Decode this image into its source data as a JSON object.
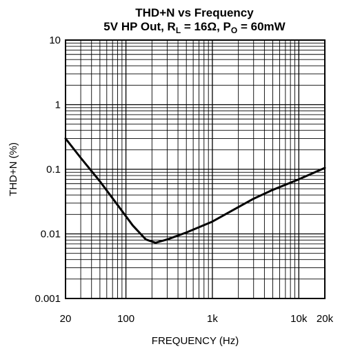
{
  "chart_data": {
    "type": "line",
    "title_line1": "THD+N vs Frequency",
    "title_line2": {
      "prefix": "5V HP Out, R",
      "rl_sub": "L",
      "mid": " = 16Ω, P",
      "po_sub": "O",
      "suffix": " = 60mW"
    },
    "xlabel": "FREQUENCY (Hz)",
    "ylabel": "THD+N (%)",
    "x_scale": "log",
    "y_scale": "log",
    "xlim": [
      20,
      20000
    ],
    "ylim": [
      0.001,
      10
    ],
    "grid": true,
    "x_ticks": [
      {
        "value": 20,
        "label": "20"
      },
      {
        "value": 100,
        "label": "100"
      },
      {
        "value": 1000,
        "label": "1k"
      },
      {
        "value": 10000,
        "label": "10k"
      },
      {
        "value": 20000,
        "label": "20k"
      }
    ],
    "y_ticks": [
      {
        "value": 10,
        "label": "10"
      },
      {
        "value": 1,
        "label": "1"
      },
      {
        "value": 0.1,
        "label": "0.1"
      },
      {
        "value": 0.01,
        "label": "0.01"
      },
      {
        "value": 0.001,
        "label": "0.001"
      }
    ],
    "series": [
      {
        "x": [
          20,
          30,
          50,
          80,
          120,
          170,
          220,
          300,
          500,
          1000,
          2000,
          3000,
          5000,
          10000,
          20000
        ],
        "y": [
          0.3,
          0.15,
          0.065,
          0.028,
          0.0135,
          0.0082,
          0.0073,
          0.0082,
          0.0105,
          0.0155,
          0.026,
          0.035,
          0.048,
          0.07,
          0.105
        ]
      }
    ]
  }
}
